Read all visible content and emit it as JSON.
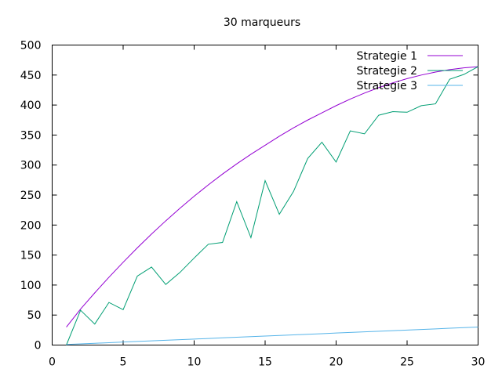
{
  "chart_data": {
    "type": "line",
    "title": "30 marqueurs",
    "xlabel": "",
    "ylabel": "",
    "xlim": [
      0,
      30
    ],
    "ylim": [
      0,
      500
    ],
    "xticks": [
      0,
      5,
      10,
      15,
      20,
      25,
      30
    ],
    "yticks": [
      0,
      50,
      100,
      150,
      200,
      250,
      300,
      350,
      400,
      450,
      500
    ],
    "grid": false,
    "legend_position": "top-right",
    "x": [
      1,
      2,
      3,
      4,
      5,
      6,
      7,
      8,
      9,
      10,
      11,
      12,
      13,
      14,
      15,
      16,
      17,
      18,
      19,
      20,
      21,
      22,
      23,
      24,
      25,
      26,
      27,
      28,
      29,
      30
    ],
    "series": [
      {
        "name": "Strategie 1",
        "color": "#9400d3",
        "values": [
          30,
          60,
          87,
          113,
          138,
          162,
          185,
          207,
          228,
          248,
          267,
          285,
          302,
          318,
          333,
          348,
          362,
          375,
          387,
          399,
          410,
          420,
          429,
          437,
          444,
          450,
          455,
          459,
          462,
          464
        ]
      },
      {
        "name": "Strategie 2",
        "color": "#009e73",
        "values": [
          0,
          58,
          35,
          71,
          59,
          115,
          130,
          101,
          121,
          145,
          168,
          171,
          239,
          179,
          274,
          218,
          256,
          311,
          338,
          305,
          357,
          352,
          383,
          389,
          388,
          399,
          402,
          443,
          451,
          464
        ]
      },
      {
        "name": "Strategie 3",
        "color": "#56b4e9",
        "values": [
          1,
          2,
          3,
          4,
          5,
          6,
          7,
          8,
          9,
          10,
          11,
          12,
          13,
          14,
          15,
          16,
          17,
          18,
          19,
          20,
          21,
          22,
          23,
          24,
          25,
          26,
          27,
          28,
          29,
          30
        ]
      }
    ]
  }
}
